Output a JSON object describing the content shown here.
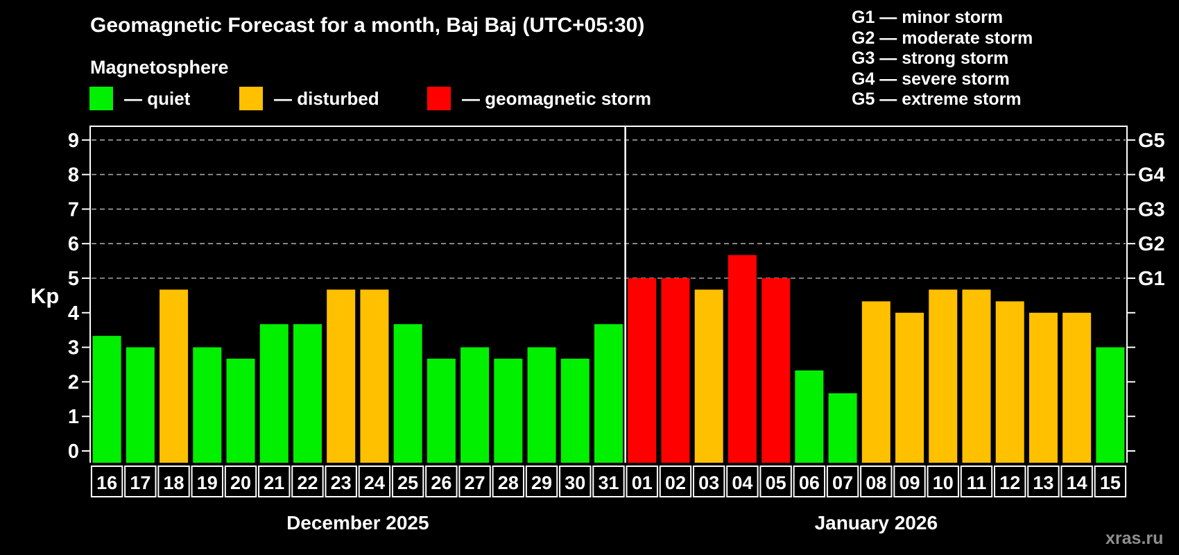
{
  "header": {
    "title": "Geomagnetic Forecast for a month, Baj Baj (UTC+05:30)",
    "subtitle": "Magnetosphere"
  },
  "legend": {
    "items": [
      {
        "key": "quiet",
        "label": "— quiet",
        "color": "#00f000"
      },
      {
        "key": "disturbed",
        "label": "— disturbed",
        "color": "#ffc000"
      },
      {
        "key": "storm",
        "label": "— geomagnetic storm",
        "color": "#ff0000"
      }
    ]
  },
  "storm_scale_legend": [
    "G1 — minor storm",
    "G2 — moderate storm",
    "G3 — strong storm",
    "G4 — severe storm",
    "G5 — extreme storm"
  ],
  "watermark": "xras.ru",
  "chart_data": {
    "type": "bar",
    "ylabel": "Kp",
    "ylim": [
      0,
      9.6
    ],
    "yticks": [
      0,
      1,
      2,
      3,
      4,
      5,
      6,
      7,
      8,
      9
    ],
    "gridlines": "dashed horizontal lines at Kp 5,6,7,8,9 only",
    "right_axis": [
      {
        "kp": 5,
        "label": "G1"
      },
      {
        "kp": 6,
        "label": "G2"
      },
      {
        "kp": 7,
        "label": "G3"
      },
      {
        "kp": 8,
        "label": "G4"
      },
      {
        "kp": 9,
        "label": "G5"
      }
    ],
    "status_colors": {
      "quiet": "#00f000",
      "disturbed": "#ffc000",
      "storm": "#ff0000"
    },
    "months": [
      {
        "label": "December 2025",
        "days": [
          {
            "day": "16",
            "kp": 3.33,
            "status": "quiet"
          },
          {
            "day": "17",
            "kp": 3.0,
            "status": "quiet"
          },
          {
            "day": "18",
            "kp": 4.67,
            "status": "disturbed"
          },
          {
            "day": "19",
            "kp": 3.0,
            "status": "quiet"
          },
          {
            "day": "20",
            "kp": 2.67,
            "status": "quiet"
          },
          {
            "day": "21",
            "kp": 3.67,
            "status": "quiet"
          },
          {
            "day": "22",
            "kp": 3.67,
            "status": "quiet"
          },
          {
            "day": "23",
            "kp": 4.67,
            "status": "disturbed"
          },
          {
            "day": "24",
            "kp": 4.67,
            "status": "disturbed"
          },
          {
            "day": "25",
            "kp": 3.67,
            "status": "quiet"
          },
          {
            "day": "26",
            "kp": 2.67,
            "status": "quiet"
          },
          {
            "day": "27",
            "kp": 3.0,
            "status": "quiet"
          },
          {
            "day": "28",
            "kp": 2.67,
            "status": "quiet"
          },
          {
            "day": "29",
            "kp": 3.0,
            "status": "quiet"
          },
          {
            "day": "30",
            "kp": 2.67,
            "status": "quiet"
          },
          {
            "day": "31",
            "kp": 3.67,
            "status": "quiet"
          }
        ]
      },
      {
        "label": "January 2026",
        "days": [
          {
            "day": "01",
            "kp": 5.0,
            "status": "storm"
          },
          {
            "day": "02",
            "kp": 5.0,
            "status": "storm"
          },
          {
            "day": "03",
            "kp": 4.67,
            "status": "disturbed"
          },
          {
            "day": "04",
            "kp": 5.67,
            "status": "storm"
          },
          {
            "day": "05",
            "kp": 5.0,
            "status": "storm"
          },
          {
            "day": "06",
            "kp": 2.33,
            "status": "quiet"
          },
          {
            "day": "07",
            "kp": 1.67,
            "status": "quiet"
          },
          {
            "day": "08",
            "kp": 4.33,
            "status": "disturbed"
          },
          {
            "day": "09",
            "kp": 4.0,
            "status": "disturbed"
          },
          {
            "day": "10",
            "kp": 4.67,
            "status": "disturbed"
          },
          {
            "day": "11",
            "kp": 4.67,
            "status": "disturbed"
          },
          {
            "day": "12",
            "kp": 4.33,
            "status": "disturbed"
          },
          {
            "day": "13",
            "kp": 4.0,
            "status": "disturbed"
          },
          {
            "day": "14",
            "kp": 4.0,
            "status": "disturbed"
          },
          {
            "day": "15",
            "kp": 3.0,
            "status": "quiet"
          }
        ]
      }
    ]
  }
}
